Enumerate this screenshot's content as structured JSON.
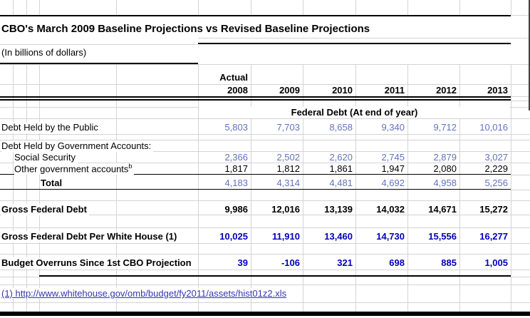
{
  "sheet": {
    "title": "CBO's March 2009 Baseline Projections vs Revised Baseline Projections",
    "subtitle": "(In billions of dollars)",
    "col_group_label": "Actual",
    "years": [
      "2008",
      "2009",
      "2010",
      "2011",
      "2012",
      "2013"
    ],
    "section_header": "Federal Debt (At end of year)",
    "rows": {
      "public": {
        "label": "Debt Held by the Public",
        "values": [
          "5,803",
          "7,703",
          "8,658",
          "9,340",
          "9,712",
          "10,016"
        ]
      },
      "govt_hdr": {
        "label": "Debt Held by Government Accounts:"
      },
      "social": {
        "label": "Social Security",
        "values": [
          "2,366",
          "2,502",
          "2,620",
          "2,745",
          "2,879",
          "3,027"
        ]
      },
      "other": {
        "label": "Other government accounts",
        "sup": "b",
        "values": [
          "1,817",
          "1,812",
          "1,861",
          "1,947",
          "2,080",
          "2,229"
        ]
      },
      "total": {
        "label": "Total",
        "values": [
          "4,183",
          "4,314",
          "4,481",
          "4,692",
          "4,958",
          "5,256"
        ]
      },
      "gross": {
        "label": "Gross Federal Debt",
        "values": [
          "9,986",
          "12,016",
          "13,139",
          "14,032",
          "14,671",
          "15,272"
        ]
      },
      "gross_wh": {
        "label": "Gross Federal Debt Per White House (1)",
        "values": [
          "10,025",
          "11,910",
          "13,460",
          "14,730",
          "15,556",
          "16,277"
        ]
      },
      "overruns": {
        "label": "Budget Overruns Since 1st CBO Projection",
        "values": [
          "39",
          "-106",
          "321",
          "698",
          "885",
          "1,005"
        ]
      }
    },
    "footnote_link": "(1) http://www.whitehouse.gov/omb/budget/fy2011/assets/hist01z2.xls",
    "colors": {
      "value_blue": "#6372BE",
      "bold_blue": "#0000BD",
      "link_blue": "#3535B5",
      "gridline": "#D4D4D4"
    }
  }
}
